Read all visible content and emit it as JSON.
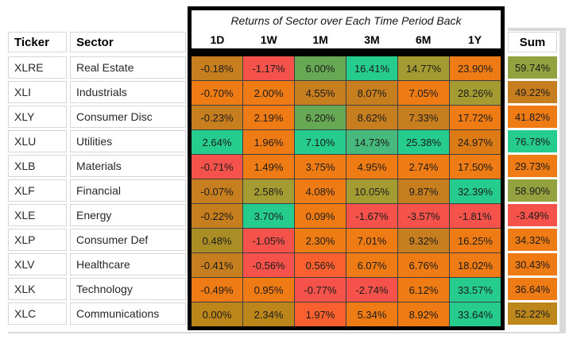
{
  "title": "Returns of Sector over Each Time Period Back",
  "columns": {
    "ticker": "Ticker",
    "sector": "Sector",
    "periods": [
      "1D",
      "1W",
      "1M",
      "3M",
      "6M",
      "1Y"
    ],
    "sum": "Sum"
  },
  "palette": {
    "red": "#F4524B",
    "redOrange": "#F9602F",
    "orange": "#EF7B14",
    "darkOrange": "#DC7A15",
    "brownOrange": "#C77E1F",
    "gold": "#BC861B",
    "oliveGold": "#AB8D25",
    "olive": "#A49B33",
    "oliveGreen": "#94A13F",
    "green": "#67A854",
    "tealGreen": "#47B97D",
    "teal": "#26CB8E",
    "frame": "#000000",
    "gridline": "#3F3F3F",
    "cellBorder": "#D6D6D6",
    "strip": "#D9D9D9"
  },
  "rows": [
    {
      "ticker": "XLRE",
      "sector": "Real Estate",
      "values": [
        "-0.18%",
        "-1.17%",
        "6.00%",
        "16.41%",
        "14.77%",
        "23.90%"
      ],
      "colors": [
        "brownOrange",
        "red",
        "green",
        "teal",
        "olive",
        "orange"
      ],
      "sum": "59.74%",
      "sumColor": "oliveGreen"
    },
    {
      "ticker": "XLI",
      "sector": "Industrials",
      "values": [
        "-0.70%",
        "2.00%",
        "4.55%",
        "8.07%",
        "7.05%",
        "28.26%"
      ],
      "colors": [
        "orange",
        "orange",
        "brownOrange",
        "brownOrange",
        "orange",
        "olive"
      ],
      "sum": "49.22%",
      "sumColor": "brownOrange"
    },
    {
      "ticker": "XLY",
      "sector": "Consumer Disc",
      "values": [
        "-0.23%",
        "2.19%",
        "6.20%",
        "8.62%",
        "7.33%",
        "17.72%"
      ],
      "colors": [
        "brownOrange",
        "orange",
        "green",
        "brownOrange",
        "brownOrange",
        "orange"
      ],
      "sum": "41.82%",
      "sumColor": "orange"
    },
    {
      "ticker": "XLU",
      "sector": "Utilities",
      "values": [
        "2.64%",
        "1.96%",
        "7.10%",
        "14.73%",
        "25.38%",
        "24.97%"
      ],
      "colors": [
        "teal",
        "orange",
        "teal",
        "tealGreen",
        "teal",
        "darkOrange"
      ],
      "sum": "76.78%",
      "sumColor": "teal"
    },
    {
      "ticker": "XLB",
      "sector": "Materials",
      "values": [
        "-0.71%",
        "1.49%",
        "3.75%",
        "4.95%",
        "2.74%",
        "17.50%"
      ],
      "colors": [
        "red",
        "orange",
        "orange",
        "orange",
        "orange",
        "orange"
      ],
      "sum": "29.73%",
      "sumColor": "orange"
    },
    {
      "ticker": "XLF",
      "sector": "Financial",
      "values": [
        "-0.07%",
        "2.58%",
        "4.08%",
        "10.05%",
        "9.87%",
        "32.39%"
      ],
      "colors": [
        "brownOrange",
        "olive",
        "orange",
        "olive",
        "brownOrange",
        "teal"
      ],
      "sum": "58.90%",
      "sumColor": "oliveGreen"
    },
    {
      "ticker": "XLE",
      "sector": "Energy",
      "values": [
        "-0.22%",
        "3.70%",
        "0.09%",
        "-1.67%",
        "-3.57%",
        "-1.81%"
      ],
      "colors": [
        "brownOrange",
        "teal",
        "orange",
        "red",
        "red",
        "red"
      ],
      "sum": "-3.49%",
      "sumColor": "red"
    },
    {
      "ticker": "XLP",
      "sector": "Consumer Def",
      "values": [
        "0.48%",
        "-1.05%",
        "2.30%",
        "7.01%",
        "9.32%",
        "16.25%"
      ],
      "colors": [
        "oliveGold",
        "red",
        "orange",
        "orange",
        "brownOrange",
        "orange"
      ],
      "sum": "34.32%",
      "sumColor": "orange"
    },
    {
      "ticker": "XLV",
      "sector": "Healthcare",
      "values": [
        "-0.41%",
        "-0.56%",
        "0.56%",
        "6.07%",
        "6.76%",
        "18.02%"
      ],
      "colors": [
        "brownOrange",
        "red",
        "redOrange",
        "orange",
        "orange",
        "orange"
      ],
      "sum": "30.43%",
      "sumColor": "orange"
    },
    {
      "ticker": "XLK",
      "sector": "Technology",
      "values": [
        "-0.49%",
        "0.95%",
        "-0.77%",
        "-2.74%",
        "6.12%",
        "33.57%"
      ],
      "colors": [
        "orange",
        "orange",
        "red",
        "red",
        "orange",
        "teal"
      ],
      "sum": "36.64%",
      "sumColor": "orange"
    },
    {
      "ticker": "XLC",
      "sector": "Communications",
      "values": [
        "0.00%",
        "2.34%",
        "1.97%",
        "5.34%",
        "8.92%",
        "33.64%"
      ],
      "colors": [
        "gold",
        "gold",
        "redOrange",
        "orange",
        "orange",
        "teal"
      ],
      "sum": "52.22%",
      "sumColor": "gold"
    }
  ],
  "chart_data": {
    "type": "heatmap",
    "title": "Returns of Sector over Each Time Period Back",
    "x_labels": [
      "1D",
      "1W",
      "1M",
      "3M",
      "6M",
      "1Y"
    ],
    "y_labels": [
      "XLRE",
      "XLI",
      "XLY",
      "XLU",
      "XLB",
      "XLF",
      "XLE",
      "XLP",
      "XLV",
      "XLK",
      "XLC"
    ],
    "y_label_names": [
      "Real Estate",
      "Industrials",
      "Consumer Disc",
      "Utilities",
      "Materials",
      "Financial",
      "Energy",
      "Consumer Def",
      "Healthcare",
      "Technology",
      "Communications"
    ],
    "values_pct": [
      [
        -0.18,
        -1.17,
        6.0,
        16.41,
        14.77,
        23.9
      ],
      [
        -0.7,
        2.0,
        4.55,
        8.07,
        7.05,
        28.26
      ],
      [
        -0.23,
        2.19,
        6.2,
        8.62,
        7.33,
        17.72
      ],
      [
        2.64,
        1.96,
        7.1,
        14.73,
        25.38,
        24.97
      ],
      [
        -0.71,
        1.49,
        3.75,
        4.95,
        2.74,
        17.5
      ],
      [
        -0.07,
        2.58,
        4.08,
        10.05,
        9.87,
        32.39
      ],
      [
        -0.22,
        3.7,
        0.09,
        -1.67,
        -3.57,
        -1.81
      ],
      [
        0.48,
        -1.05,
        2.3,
        7.01,
        9.32,
        16.25
      ],
      [
        -0.41,
        -0.56,
        0.56,
        6.07,
        6.76,
        18.02
      ],
      [
        -0.49,
        0.95,
        -0.77,
        -2.74,
        6.12,
        33.57
      ],
      [
        0.0,
        2.34,
        1.97,
        5.34,
        8.92,
        33.64
      ]
    ],
    "sum_pct": [
      59.74,
      49.22,
      41.82,
      76.78,
      29.73,
      58.9,
      -3.49,
      34.32,
      30.43,
      36.64,
      52.22
    ],
    "legend": "none",
    "color_scale": "red=negative, orange/gold/olive=low-mid, green/teal=high"
  }
}
